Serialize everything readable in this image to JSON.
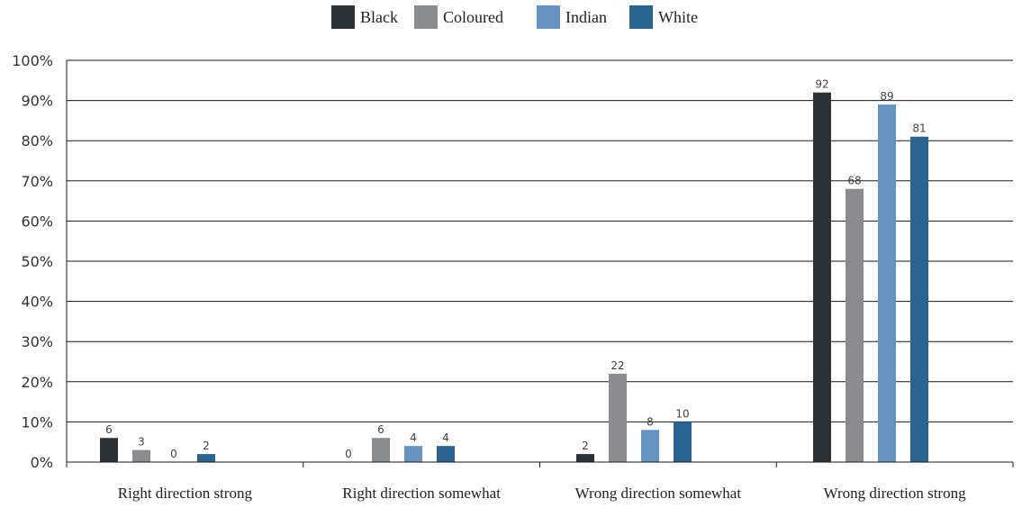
{
  "chart_data": {
    "type": "bar",
    "categories": [
      "Right direction strong",
      "Right direction somewhat",
      "Wrong direction somewhat",
      "Wrong direction strong"
    ],
    "series": [
      {
        "name": "Black",
        "color": "#2d3236",
        "values": [
          6,
          0,
          2,
          92
        ]
      },
      {
        "name": "Coloured",
        "color": "#8a8c8f",
        "values": [
          3,
          6,
          22,
          68
        ]
      },
      {
        "name": "Indian",
        "color": "#6592bf",
        "values": [
          0,
          4,
          8,
          89
        ]
      },
      {
        "name": "White",
        "color": "#2a6491",
        "values": [
          2,
          4,
          10,
          81
        ]
      }
    ],
    "ylim": [
      0,
      100
    ],
    "yticks": [
      "0%",
      "10%",
      "20%",
      "30%",
      "40%",
      "50%",
      "60%",
      "70%",
      "80%",
      "90%",
      "100%"
    ],
    "grid": true,
    "legend_position": "top-center"
  }
}
